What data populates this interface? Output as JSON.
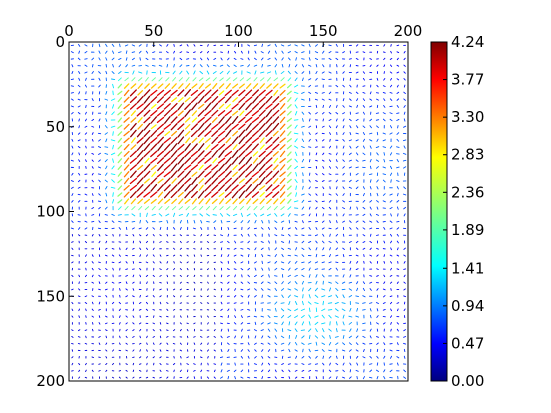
{
  "chart_data": {
    "type": "quiver",
    "title": "",
    "xlabel": "",
    "ylabel": "",
    "x_ticks": [
      "0",
      "50",
      "100",
      "150",
      "200"
    ],
    "y_ticks": [
      "0",
      "50",
      "100",
      "150",
      "200"
    ],
    "xlim": [
      0,
      200
    ],
    "ylim": [
      200,
      0
    ],
    "x_axis_position": "top",
    "y_axis_inverted": true,
    "grid": false,
    "colormap": "jet",
    "colorbar": {
      "position": "right",
      "range": [
        0,
        4.24
      ],
      "ticks": [
        "4.24",
        "3.77",
        "3.30",
        "2.83",
        "2.36",
        "1.89",
        "1.41",
        "0.94",
        "0.47",
        "0.00"
      ]
    },
    "field": {
      "grid_spacing": 4,
      "arrow_direction": "diagonal, pointing toward lower-left within the high-magnitude block",
      "regions": [
        {
          "name": "high-magnitude block",
          "x_range": [
            35,
            125
          ],
          "y_range": [
            28,
            92
          ],
          "max_magnitude": 4.24
        },
        {
          "name": "moderate field, lower right",
          "x_range": [
            90,
            200
          ],
          "y_range": [
            120,
            200
          ],
          "max_magnitude": 1.41
        }
      ],
      "background_magnitude": 0.7
    }
  }
}
